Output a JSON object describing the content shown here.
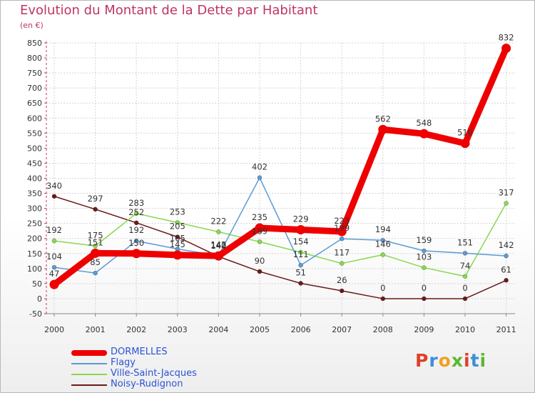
{
  "header": {
    "title": "Evolution du Montant de la Dette par Habitant",
    "subtitle": "(en €)"
  },
  "brand": {
    "text": "Proxiti",
    "letter_colors": [
      "#e0402a",
      "#3e8ed6",
      "#f0a020",
      "#5bb830",
      "#e0402a",
      "#3e8ed6",
      "#5bb830"
    ]
  },
  "chart_data": {
    "type": "line",
    "x": [
      "2000",
      "2001",
      "2002",
      "2003",
      "2004",
      "2005",
      "2006",
      "2007",
      "2008",
      "2009",
      "2010",
      "2011"
    ],
    "ylim": [
      -50,
      850
    ],
    "yticks": [
      "-50",
      "0",
      "50",
      "100",
      "150",
      "200",
      "250",
      "300",
      "350",
      "400",
      "450",
      "500",
      "550",
      "600",
      "650",
      "700",
      "750",
      "800",
      "850"
    ],
    "grid": true,
    "legend_position": "bottom-left",
    "series": [
      {
        "name": "Noisy-Rudignon",
        "color": "#6b1a1a",
        "values": [
          340,
          297,
          252,
          205,
          140,
          90,
          51,
          26,
          0,
          0,
          0,
          61
        ],
        "labels": [
          "340",
          "297",
          "252",
          "205",
          "140",
          "90",
          "51",
          "26",
          "0",
          "0",
          "0",
          "61"
        ]
      },
      {
        "name": "Ville-Saint-Jacques",
        "color": "#88d850",
        "values": [
          192,
          175,
          283,
          253,
          222,
          189,
          154,
          117,
          146,
          103,
          74,
          317
        ],
        "labels": [
          "192",
          "175",
          "283",
          "253",
          "222",
          "189",
          "154",
          "117",
          "146",
          "103",
          "74",
          "317"
        ]
      },
      {
        "name": "Flagy",
        "color": "#5b9bd5",
        "values": [
          104,
          85,
          192,
          165,
          143,
          402,
          111,
          199,
          194,
          159,
          151,
          142
        ],
        "labels": [
          "104",
          "85",
          "192",
          "165",
          "143",
          "402",
          "111",
          "199",
          "194",
          "159",
          "151",
          "142"
        ]
      },
      {
        "name": "DORMELLES",
        "color": "#ee0000",
        "values": [
          47,
          151,
          150,
          145,
          142,
          235,
          229,
          223,
          562,
          548,
          516,
          832
        ],
        "labels": [
          "47",
          "151",
          "150",
          "145",
          "142",
          "235",
          "229",
          "223",
          "562",
          "548",
          "516",
          "832"
        ]
      }
    ]
  },
  "legend": [
    {
      "label": "DORMELLES",
      "color": "#ee0000"
    },
    {
      "label": "Flagy",
      "color": "#5b9bd5"
    },
    {
      "label": "Ville-Saint-Jacques",
      "color": "#88d850"
    },
    {
      "label": "Noisy-Rudignon",
      "color": "#6b1a1a"
    }
  ]
}
